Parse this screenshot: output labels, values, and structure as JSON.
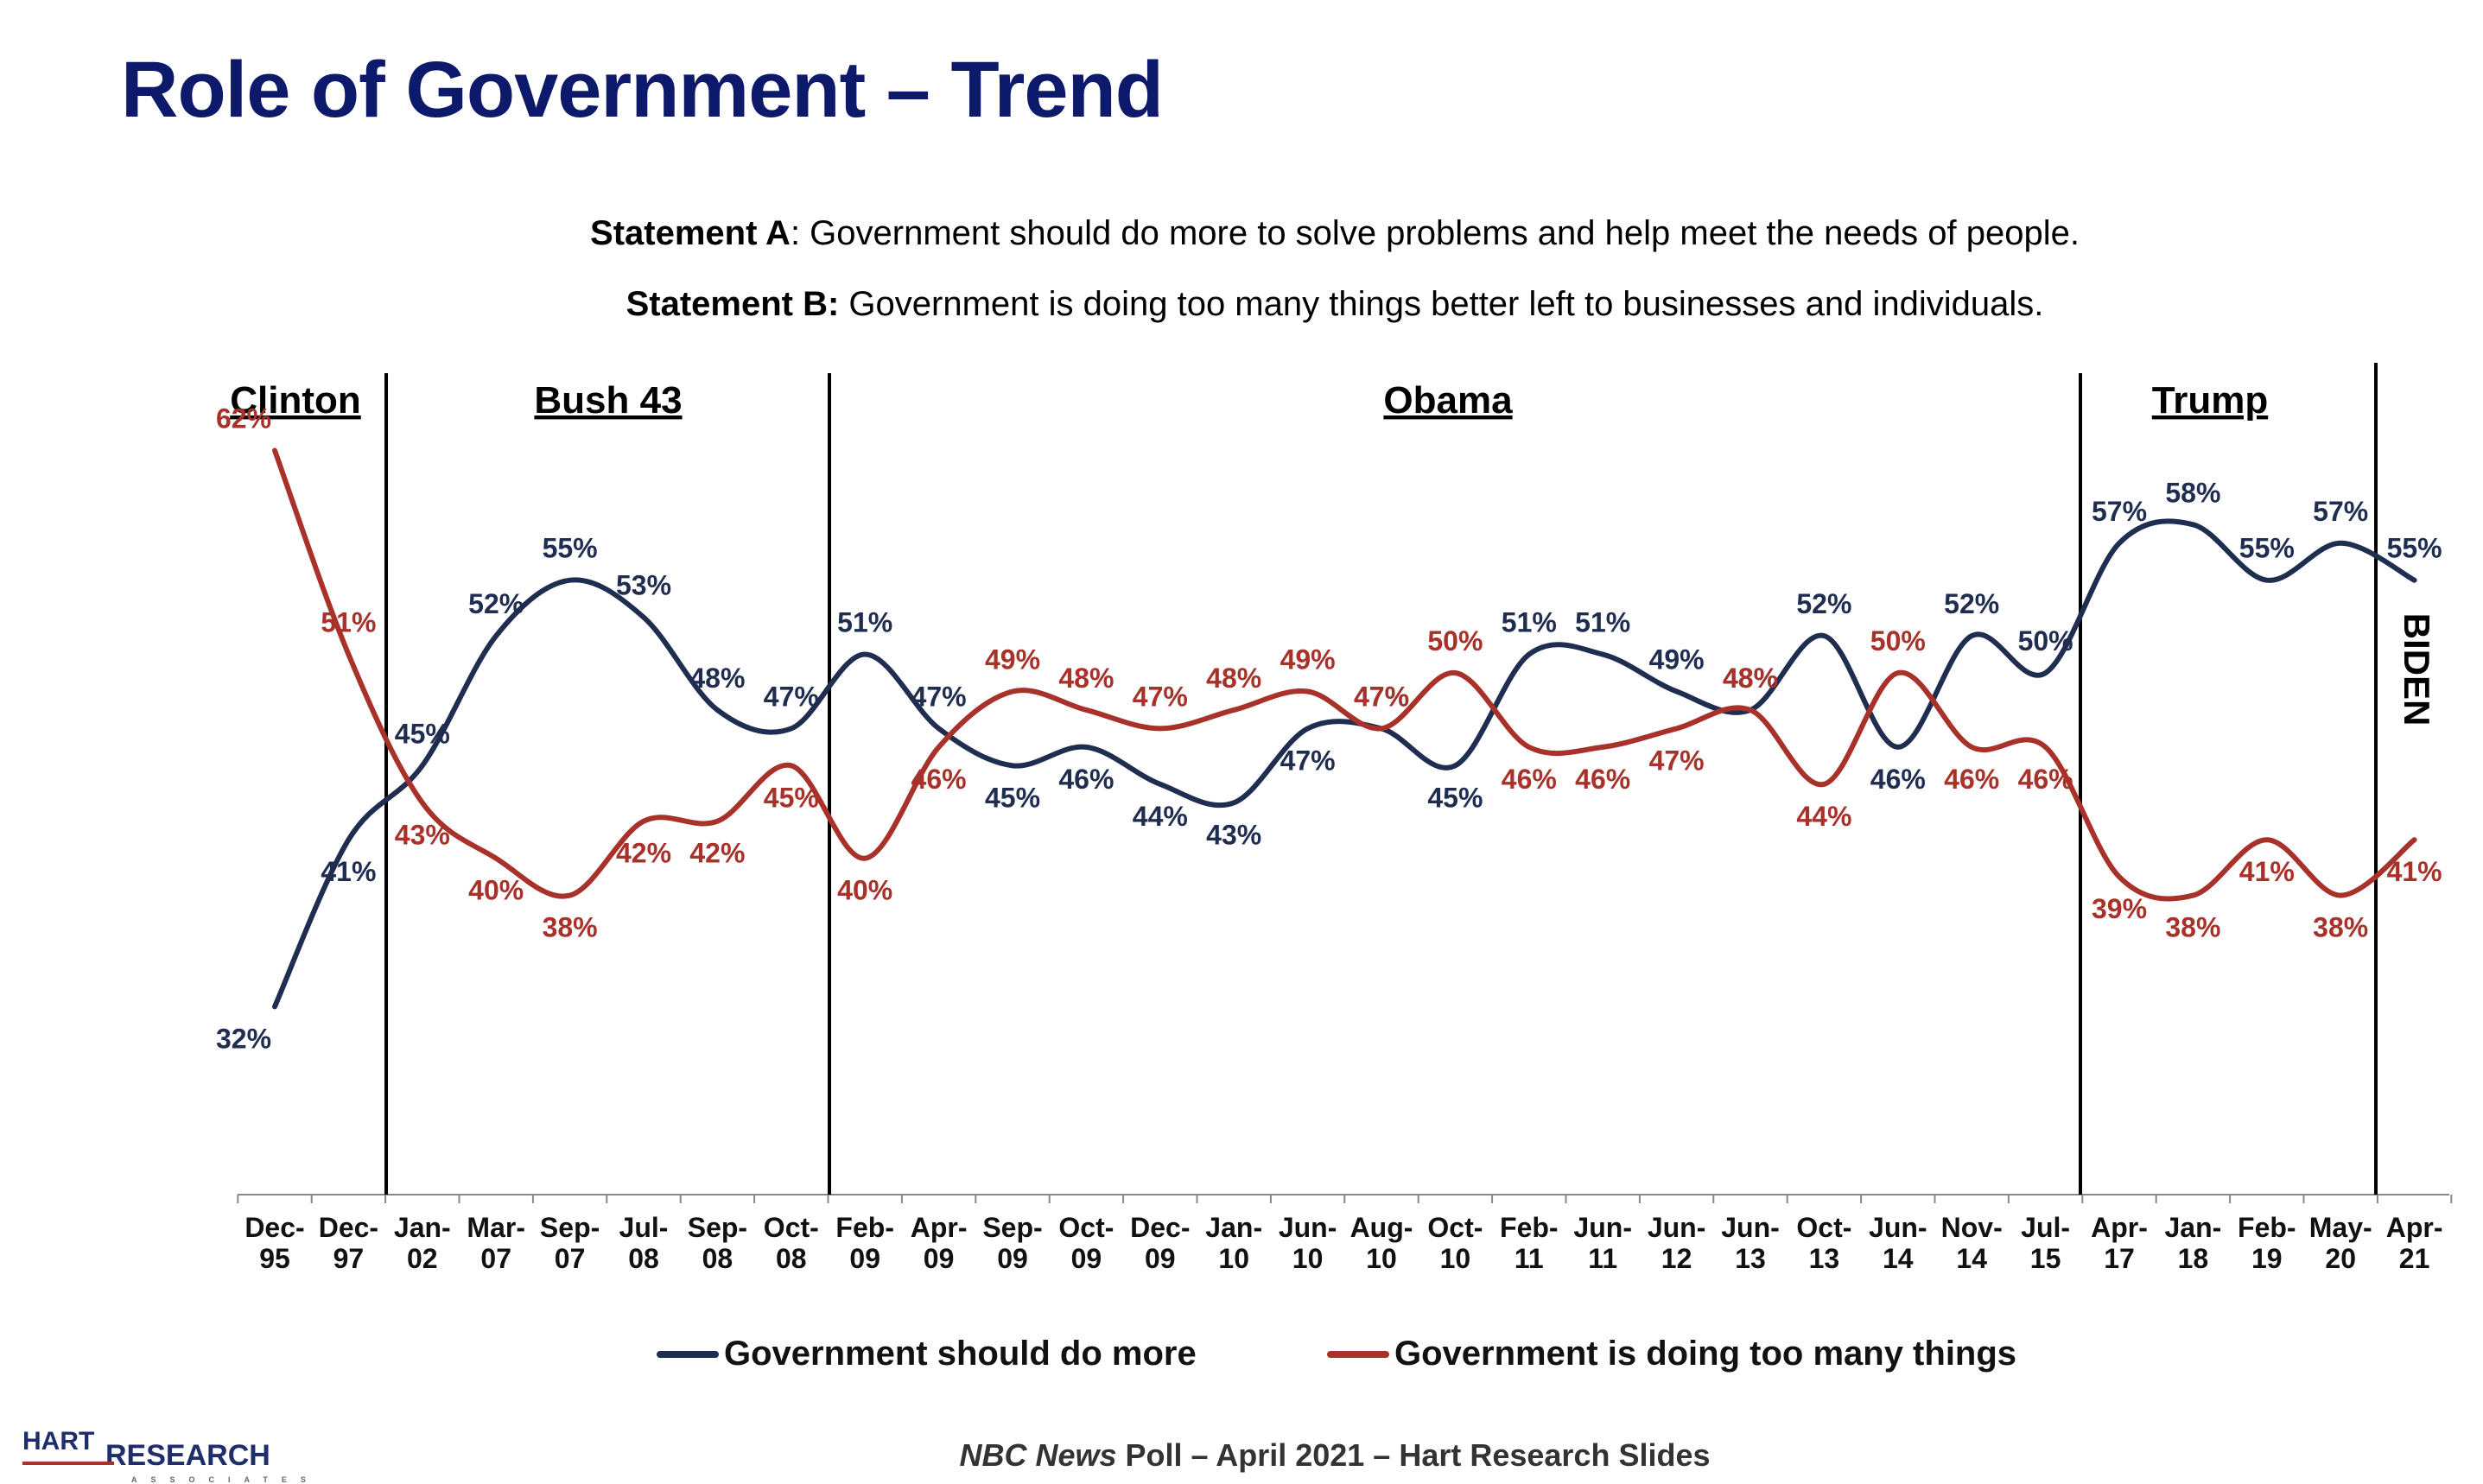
{
  "title": "Role of Government – Trend",
  "statement_a": {
    "label": "Statement A",
    "text": ": Government should do more to solve problems and help meet the needs of people."
  },
  "statement_b": {
    "label": "Statement B:",
    "text": " Government is doing too many things better left to businesses and individuals."
  },
  "source": {
    "italic": "NBC News",
    "rest": " Poll – April 2021 – Hart Research Slides"
  },
  "logo": {
    "line1": "HART",
    "line2": "RESEARCH",
    "line3": "ASSOCIATES"
  },
  "chart_data": {
    "type": "line",
    "categories": [
      "Dec-95",
      "Dec-97",
      "Jan-02",
      "Mar-07",
      "Sep-07",
      "Jul-08",
      "Sep-08",
      "Oct-08",
      "Feb-09",
      "Apr-09",
      "Sep-09",
      "Oct-09",
      "Dec-09",
      "Jan-10",
      "Jun-10",
      "Aug-10",
      "Oct-10",
      "Feb-11",
      "Jun-11",
      "Jun-12",
      "Jun-13",
      "Oct-13",
      "Jun-14",
      "Nov-14",
      "Jul-15",
      "Apr-17",
      "Jan-18",
      "Feb-19",
      "May-20",
      "Apr-21"
    ],
    "tick_labels": [
      [
        "Dec-",
        "95"
      ],
      [
        "Dec-",
        "97"
      ],
      [
        "Jan-",
        "02"
      ],
      [
        "Mar-",
        "07"
      ],
      [
        "Sep-",
        "07"
      ],
      [
        "Jul-",
        "08"
      ],
      [
        "Sep-",
        "08"
      ],
      [
        "Oct-",
        "08"
      ],
      [
        "Feb-",
        "09"
      ],
      [
        "Apr-",
        "09"
      ],
      [
        "Sep-",
        "09"
      ],
      [
        "Oct-",
        "09"
      ],
      [
        "Dec-",
        "09"
      ],
      [
        "Jan-",
        "10"
      ],
      [
        "Jun-",
        "10"
      ],
      [
        "Aug-",
        "10"
      ],
      [
        "Oct-",
        "10"
      ],
      [
        "Feb-",
        "11"
      ],
      [
        "Jun-",
        "11"
      ],
      [
        "Jun-",
        "12"
      ],
      [
        "Jun-",
        "13"
      ],
      [
        "Oct-",
        "13"
      ],
      [
        "Jun-",
        "14"
      ],
      [
        "Nov-",
        "14"
      ],
      [
        "Jul-",
        "15"
      ],
      [
        "Apr-",
        "17"
      ],
      [
        "Jan-",
        "18"
      ],
      [
        "Feb-",
        "19"
      ],
      [
        "May-",
        "20"
      ],
      [
        "Apr-",
        "21"
      ]
    ],
    "series": [
      {
        "name": "Government should do more",
        "color": "#1f2d50",
        "values": [
          32,
          41,
          45,
          52,
          55,
          53,
          48,
          47,
          51,
          47,
          45,
          46,
          44,
          43,
          47,
          47,
          45,
          51,
          51,
          49,
          48,
          52,
          46,
          52,
          50,
          57,
          58,
          55,
          57,
          55
        ]
      },
      {
        "name": "Government is doing too many things",
        "color": "#a8312a",
        "values": [
          62,
          51,
          43,
          40,
          38,
          42,
          42,
          45,
          40,
          46,
          49,
          48,
          47,
          48,
          49,
          47,
          50,
          46,
          46,
          47,
          48,
          44,
          50,
          46,
          46,
          39,
          38,
          41,
          38,
          41
        ]
      }
    ],
    "ylim": [
      22,
      63
    ],
    "legend": "bottom",
    "grid": false,
    "eras": [
      {
        "name": "Clinton",
        "from": 0,
        "to": 1
      },
      {
        "name": "Bush 43",
        "from": 2,
        "to": 7
      },
      {
        "name": "Obama",
        "from": 8,
        "to": 24
      },
      {
        "name": "Trump",
        "from": 25,
        "to": 28
      }
    ],
    "era_dividers_after": [
      1,
      7,
      24,
      28
    ],
    "final_label": "BIDEN"
  }
}
